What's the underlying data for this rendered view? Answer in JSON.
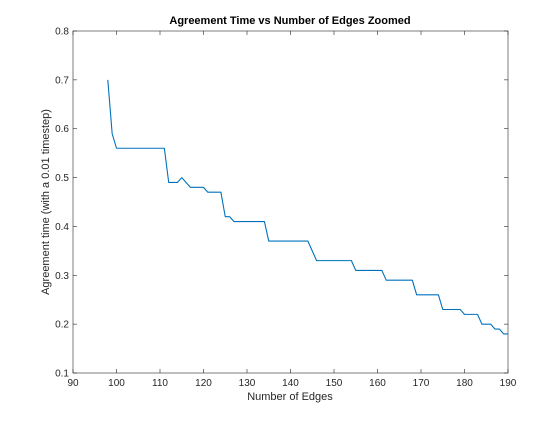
{
  "colors": {
    "series": "#0072BD",
    "axis": "#262626",
    "background": "#ffffff"
  },
  "chart_data": {
    "type": "line",
    "title": "Agreement Time vs Number of Edges Zoomed",
    "xlabel": "Number of Edges",
    "ylabel": "Agreement time (with a 0.01 timestep)",
    "xlim": [
      90,
      190
    ],
    "ylim": [
      0.1,
      0.8
    ],
    "grid": false,
    "box": true,
    "xticks": [
      90,
      100,
      110,
      120,
      130,
      140,
      150,
      160,
      170,
      180,
      190
    ],
    "xtick_labels": [
      "90",
      "100",
      "110",
      "120",
      "130",
      "140",
      "150",
      "160",
      "170",
      "180",
      "190"
    ],
    "yticks": [
      0.1,
      0.2,
      0.3,
      0.4,
      0.5,
      0.6,
      0.7,
      0.8
    ],
    "ytick_labels": [
      "0.1",
      "0.2",
      "0.3",
      "0.4",
      "0.5",
      "0.6",
      "0.7",
      "0.8"
    ],
    "series": [
      {
        "x": [
          98,
          99,
          100,
          101,
          102,
          103,
          104,
          105,
          106,
          107,
          108,
          109,
          110,
          111,
          112,
          113,
          114,
          115,
          116,
          117,
          118,
          119,
          120,
          121,
          122,
          123,
          124,
          125,
          126,
          127,
          128,
          129,
          130,
          131,
          132,
          133,
          134,
          135,
          136,
          137,
          138,
          139,
          140,
          141,
          142,
          143,
          144,
          145,
          146,
          147,
          148,
          149,
          150,
          151,
          152,
          153,
          154,
          155,
          156,
          157,
          158,
          159,
          160,
          161,
          162,
          163,
          164,
          165,
          166,
          167,
          168,
          169,
          170,
          171,
          172,
          173,
          174,
          175,
          176,
          177,
          178,
          179,
          180,
          181,
          182,
          183,
          184,
          185,
          186,
          187,
          188,
          189,
          190
        ],
        "values": [
          0.7,
          0.59,
          0.56,
          0.56,
          0.56,
          0.56,
          0.56,
          0.56,
          0.56,
          0.56,
          0.56,
          0.56,
          0.56,
          0.56,
          0.49,
          0.49,
          0.49,
          0.5,
          0.49,
          0.48,
          0.48,
          0.48,
          0.48,
          0.47,
          0.47,
          0.47,
          0.47,
          0.42,
          0.42,
          0.41,
          0.41,
          0.41,
          0.41,
          0.41,
          0.41,
          0.41,
          0.41,
          0.37,
          0.37,
          0.37,
          0.37,
          0.37,
          0.37,
          0.37,
          0.37,
          0.37,
          0.37,
          0.35,
          0.33,
          0.33,
          0.33,
          0.33,
          0.33,
          0.33,
          0.33,
          0.33,
          0.33,
          0.31,
          0.31,
          0.31,
          0.31,
          0.31,
          0.31,
          0.31,
          0.29,
          0.29,
          0.29,
          0.29,
          0.29,
          0.29,
          0.29,
          0.26,
          0.26,
          0.26,
          0.26,
          0.26,
          0.26,
          0.23,
          0.23,
          0.23,
          0.23,
          0.23,
          0.22,
          0.22,
          0.22,
          0.22,
          0.2,
          0.2,
          0.2,
          0.19,
          0.19,
          0.18,
          0.18
        ]
      }
    ]
  }
}
